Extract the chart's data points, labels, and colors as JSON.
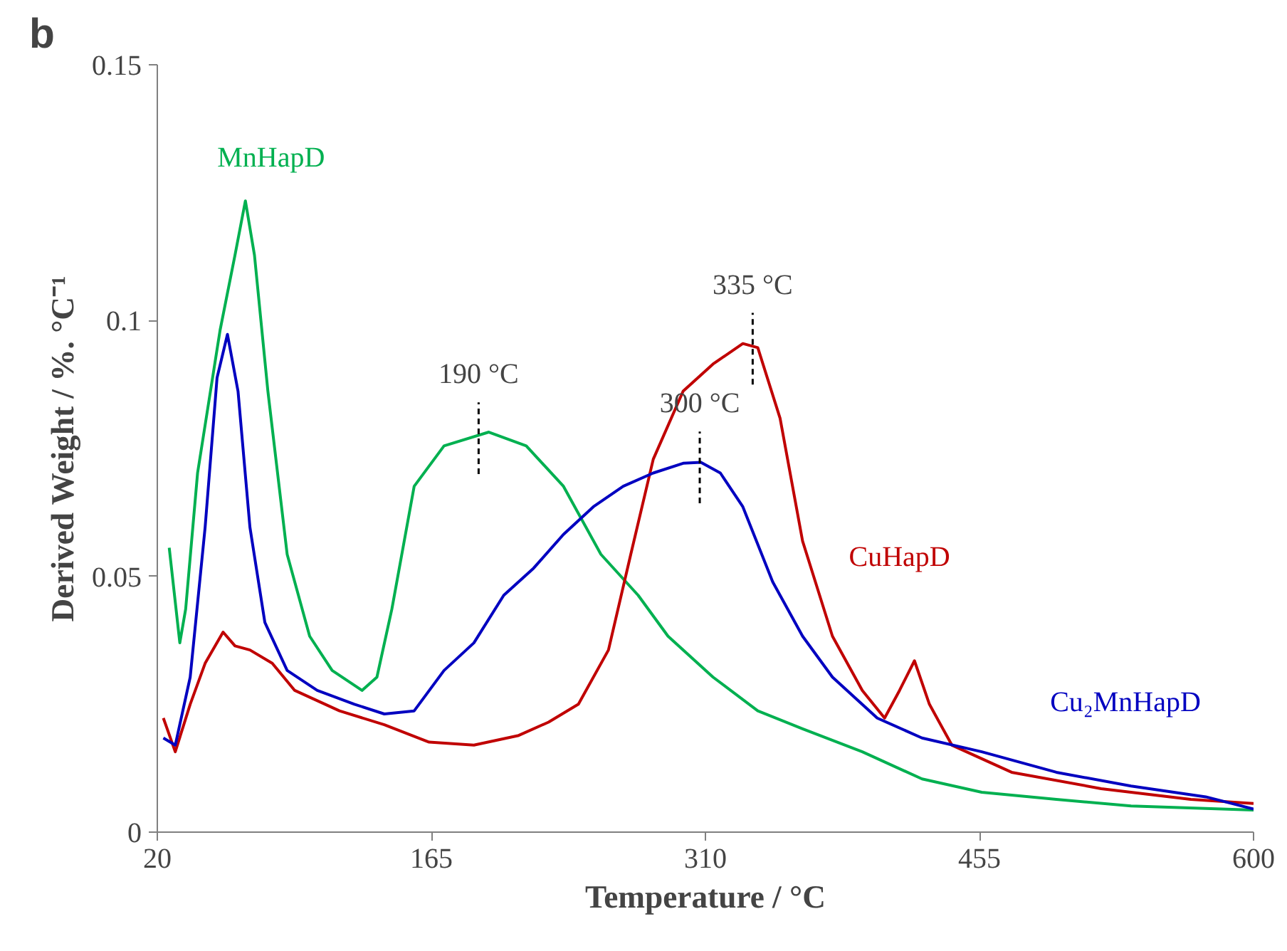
{
  "chart_data": {
    "type": "line",
    "xlabel": "Temperature / °C",
    "ylabel": "Derived Weight / %. °C⁻¹",
    "xlim": [
      20,
      600
    ],
    "ylim": [
      0,
      0.15
    ],
    "xticks": [
      20,
      165,
      310,
      455,
      600
    ],
    "yticks": [
      0,
      0.05,
      0.1,
      0.15
    ],
    "grid": false,
    "marker": "none",
    "line_style": "solid",
    "series": [
      {
        "name": "MnHapD",
        "color": "#00b050",
        "x": [
          26.3,
          31.9,
          35.0,
          41.3,
          53.2,
          61.1,
          66.6,
          71.4,
          78.5,
          88.7,
          100.6,
          112.5,
          128.3,
          136.2,
          144.1,
          155.9,
          171.7,
          195.4,
          215.2,
          234.9,
          254.7,
          274.4,
          290.2,
          314.0,
          337.7,
          361.4,
          393.0,
          424.6,
          456.2,
          495.7,
          535.2,
          600
        ],
        "values": [
          0.0556,
          0.037,
          0.0436,
          0.0702,
          0.0981,
          0.1128,
          0.1234,
          0.1128,
          0.0862,
          0.0543,
          0.0383,
          0.0316,
          0.0277,
          0.0303,
          0.0436,
          0.0676,
          0.0755,
          0.0782,
          0.0755,
          0.0676,
          0.0543,
          0.0463,
          0.0383,
          0.0303,
          0.0237,
          0.0202,
          0.0157,
          0.0104,
          0.0078,
          0.0064,
          0.0051,
          0.0043
        ]
      },
      {
        "name": "CuHapD",
        "color": "#c00000",
        "x": [
          23.2,
          29.5,
          37.4,
          45.3,
          54.8,
          61.1,
          69.0,
          80.8,
          92.7,
          116.4,
          140.1,
          163.8,
          187.5,
          211.2,
          227.0,
          242.8,
          258.7,
          270.5,
          282.4,
          298.2,
          314.0,
          329.8,
          337.7,
          349.5,
          361.4,
          377.2,
          393.0,
          404.8,
          412.7,
          420.6,
          428.5,
          440.4,
          472.0,
          519.4,
          566.8,
          600
        ],
        "values": [
          0.0223,
          0.0157,
          0.025,
          0.033,
          0.0391,
          0.0364,
          0.0356,
          0.033,
          0.0277,
          0.0237,
          0.021,
          0.0176,
          0.017,
          0.0189,
          0.0215,
          0.025,
          0.0356,
          0.0543,
          0.0729,
          0.0862,
          0.0915,
          0.0955,
          0.0947,
          0.0809,
          0.0569,
          0.0383,
          0.0277,
          0.0223,
          0.0277,
          0.0335,
          0.025,
          0.017,
          0.0117,
          0.0085,
          0.0064,
          0.0056
        ]
      },
      {
        "name": "Cu₂MnHapD",
        "color": "#0000c0",
        "x": [
          23.2,
          29.5,
          37.4,
          45.3,
          51.6,
          57.1,
          62.7,
          69.0,
          76.9,
          88.7,
          104.6,
          124.3,
          140.1,
          155.9,
          171.7,
          187.5,
          203.3,
          219.1,
          234.9,
          250.7,
          266.5,
          282.4,
          298.2,
          307.6,
          317.9,
          329.8,
          345.6,
          361.4,
          377.2,
          400.9,
          424.6,
          456.2,
          495.7,
          535.2,
          574.7,
          600
        ],
        "values": [
          0.0184,
          0.017,
          0.0303,
          0.0596,
          0.0888,
          0.0973,
          0.0862,
          0.0596,
          0.041,
          0.0316,
          0.0277,
          0.025,
          0.0231,
          0.0237,
          0.0316,
          0.037,
          0.0463,
          0.0516,
          0.0582,
          0.0636,
          0.0676,
          0.0702,
          0.0721,
          0.0723,
          0.0702,
          0.0636,
          0.0489,
          0.0383,
          0.0303,
          0.0223,
          0.0184,
          0.0157,
          0.0117,
          0.009,
          0.0069,
          0.0045
        ]
      }
    ],
    "annotations": [
      "b",
      {
        "text": "190 °C",
        "x": 190,
        "y": 0.078
      },
      {
        "text": "300 °C",
        "x": 307,
        "y": 0.0723
      },
      {
        "text": "335 °C",
        "x": 335,
        "y": 0.0955
      }
    ]
  }
}
